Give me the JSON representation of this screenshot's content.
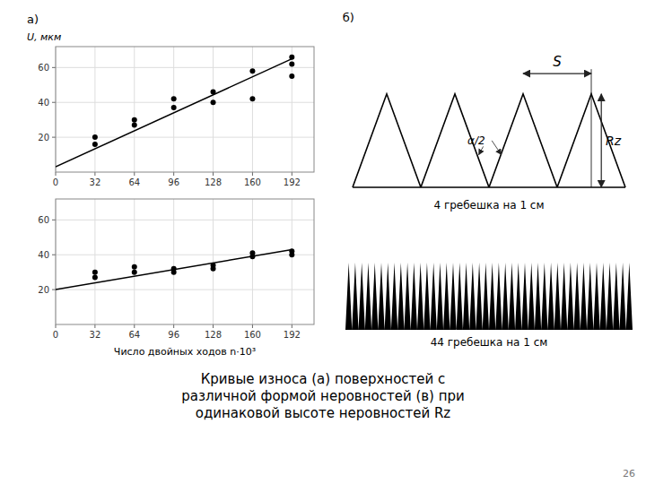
{
  "chart_data": [
    {
      "type": "line",
      "annotations": [
        "а)"
      ],
      "y_label": "U, мкм",
      "xlim": [
        0,
        210
      ],
      "ylim": [
        0,
        72
      ],
      "xticks": [
        0,
        32,
        64,
        96,
        128,
        160,
        192
      ],
      "yticks": [
        20,
        40,
        60
      ],
      "grid": true,
      "series": [
        {
          "type": "line",
          "color": "#000000",
          "x": [
            0,
            192
          ],
          "values": [
            3,
            65
          ]
        },
        {
          "type": "scatter",
          "color": "#000000",
          "x": [
            32,
            32,
            64,
            64,
            96,
            96,
            128,
            128,
            160,
            160,
            192,
            192,
            192
          ],
          "values": [
            20,
            16,
            27,
            30,
            37,
            42,
            40,
            46,
            42,
            58,
            55,
            62,
            66
          ]
        }
      ]
    },
    {
      "type": "line",
      "x_label": "Число двойных ходов n·10³",
      "xlim": [
        0,
        210
      ],
      "ylim": [
        0,
        72
      ],
      "xticks": [
        0,
        32,
        64,
        96,
        128,
        160,
        192
      ],
      "yticks": [
        20,
        40,
        60
      ],
      "grid": true,
      "series": [
        {
          "type": "line",
          "color": "#000000",
          "x": [
            0,
            192
          ],
          "values": [
            20,
            43
          ]
        },
        {
          "type": "scatter",
          "color": "#000000",
          "x": [
            32,
            32,
            64,
            64,
            96,
            96,
            128,
            128,
            160,
            160,
            192,
            192
          ],
          "values": [
            27,
            30,
            30,
            33,
            30,
            32,
            32,
            34,
            39,
            41,
            42,
            40
          ]
        }
      ]
    },
    {
      "type": "diagram",
      "annotations": [
        "б)",
        "S",
        "Rz",
        "α/2",
        "4 гребешка на 1 см",
        "44 гребешка на 1 см",
        "Кривые износа (а) поверхностей с\nразличной формой неровностей (в) при\nодинаковой высоте неровностей Rz",
        "26"
      ]
    }
  ]
}
